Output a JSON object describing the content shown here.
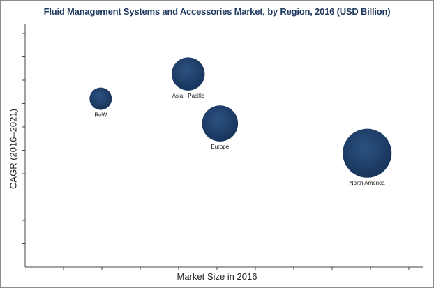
{
  "chart_data": {
    "type": "scatter",
    "title": "Fluid Management Systems and Accessories Market, by Region, 2016 (USD Billion)",
    "xlabel": "Market Size in 2016",
    "ylabel": "CAGR (2016–2021)",
    "xlim": [
      0,
      10
    ],
    "ylim": [
      0,
      10
    ],
    "grid": false,
    "legend": "none",
    "bubble_color": "#1f3a5f",
    "points": [
      {
        "label": "RoW",
        "x": 1.9,
        "y": 6.8,
        "size": 1.0
      },
      {
        "label": "Asia - Pacific",
        "x": 4.1,
        "y": 7.8,
        "size": 2.2
      },
      {
        "label": "Europe",
        "x": 4.9,
        "y": 5.8,
        "size": 2.6
      },
      {
        "label": "North America",
        "x": 8.6,
        "y": 4.6,
        "size": 4.8
      }
    ]
  }
}
